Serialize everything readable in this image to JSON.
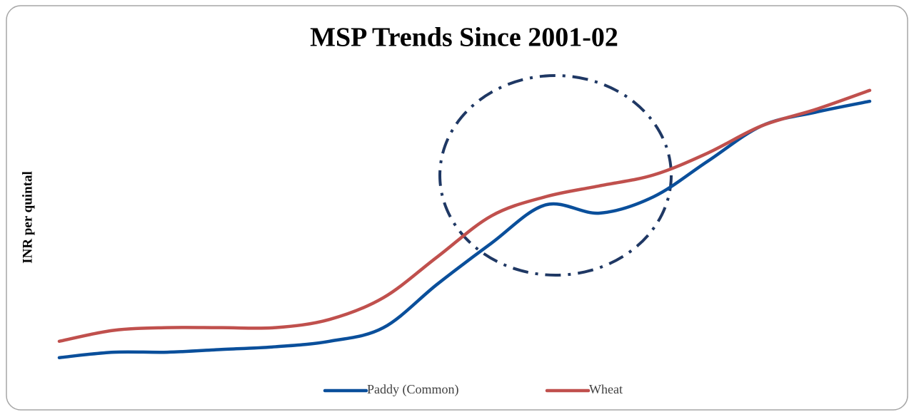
{
  "chart_data": {
    "type": "line",
    "title": "MSP Trends Since 2001-02",
    "y_label": "INR per quintal",
    "categories": [
      null,
      null,
      null,
      null,
      null,
      null,
      null,
      null,
      null,
      null,
      null,
      null,
      null,
      null,
      null,
      null
    ],
    "series": [
      {
        "name": "Paddy (Common)",
        "color": "#0a4f9b",
        "values": [
          530,
          550,
          550,
          560,
          570,
          590,
          640,
          800,
          950,
          1090,
          1060,
          1120,
          1250,
          1380,
          1430,
          1470
        ]
      },
      {
        "name": "Wheat",
        "color": "#c0504d",
        "values": [
          590,
          630,
          640,
          640,
          640,
          670,
          750,
          900,
          1050,
          1120,
          1160,
          1200,
          1280,
          1380,
          1440,
          1510
        ]
      }
    ],
    "ylim": [
      430,
      1580
    ],
    "grid": false,
    "legend": "bottom"
  }
}
